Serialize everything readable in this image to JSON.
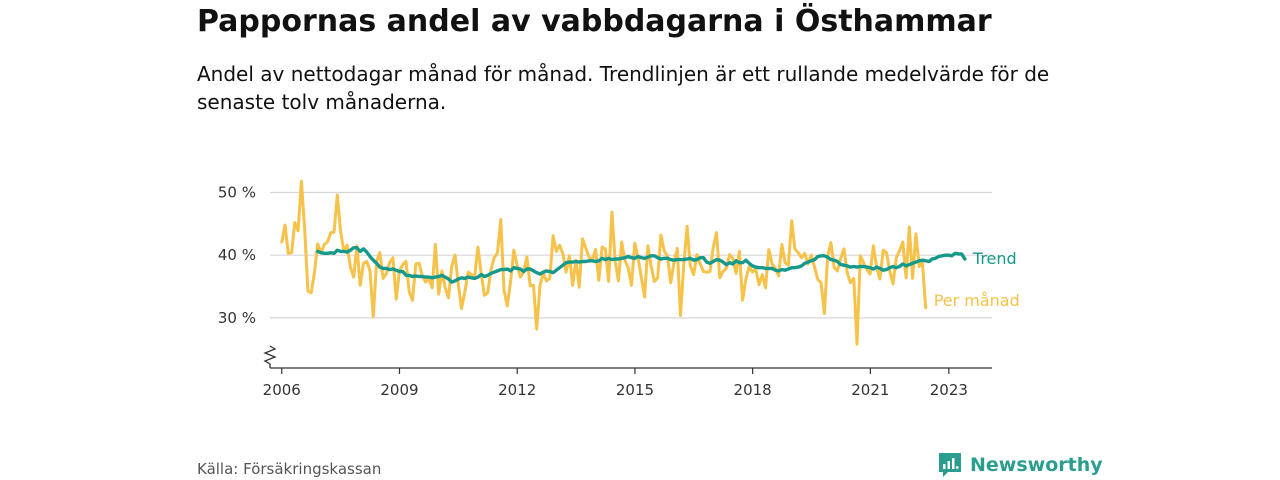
{
  "title": "Pappornas andel av vabbdagarna i Östhammar",
  "subtitle": "Andel av nettodagar månad för månad. Trendlinjen är ett rullande medelvärde för de senaste tolv månaderna.",
  "source": "Källa: Försäkringskassan",
  "brand": {
    "name": "Newsworthy",
    "icon": "newsworthy-logo-icon"
  },
  "colors": {
    "monthly": "#f6c24a",
    "trend": "#16998a",
    "grid": "#d6d6d6",
    "axis": "#333333",
    "brand": "#2a9d8f"
  },
  "chart_data": {
    "type": "line",
    "xlabel": "",
    "ylabel": "",
    "x_start": 2006.0,
    "x_step": 0.0833,
    "xlim": [
      2005.7,
      2024.1
    ],
    "ylim": [
      22,
      52
    ],
    "y_ticks": [
      30,
      40,
      50
    ],
    "y_tick_labels": [
      "30 %",
      "40 %",
      "50 %"
    ],
    "x_ticks": [
      2006,
      2009,
      2012,
      2015,
      2018,
      2021,
      2023
    ],
    "x_tick_labels": [
      "2006",
      "2009",
      "2012",
      "2015",
      "2018",
      "2021",
      "2023"
    ],
    "axis_break": true,
    "series": [
      {
        "name": "Per månad",
        "values": [
          42.1,
          44.8,
          40.3,
          40.4,
          45.2,
          43.9,
          51.8,
          44.1,
          34.3,
          34.0,
          37.3,
          41.8,
          40.4,
          41.7,
          42.1,
          43.6,
          43.7,
          49.6,
          43.8,
          40.6,
          41.6,
          38.1,
          36.5,
          41.5,
          35.2,
          38.7,
          39.0,
          37.5,
          30.2,
          39.0,
          40.4,
          36.3,
          37.1,
          38.8,
          39.6,
          33.0,
          37.5,
          38.5,
          39.0,
          34.2,
          32.8,
          38.6,
          38.7,
          36.7,
          35.7,
          36.3,
          34.8,
          41.7,
          33.8,
          37.5,
          34.8,
          33.2,
          38.2,
          40.0,
          35.4,
          31.5,
          34.1,
          37.3,
          36.9,
          36.5,
          41.3,
          37.1,
          33.6,
          34.0,
          37.7,
          39.6,
          40.4,
          45.7,
          34.4,
          31.9,
          35.8,
          40.8,
          38.4,
          36.5,
          37.3,
          39.7,
          35.1,
          35.2,
          28.2,
          35.2,
          37.1,
          35.9,
          36.3,
          43.1,
          40.6,
          41.6,
          40.2,
          37.3,
          39.9,
          35.2,
          39.2,
          34.9,
          42.6,
          41.1,
          39.7,
          39.3,
          40.9,
          36.0,
          41.3,
          41.0,
          35.8,
          46.9,
          39.0,
          35.9,
          42.1,
          39.1,
          38.0,
          35.2,
          41.9,
          39.5,
          36.5,
          33.3,
          41.5,
          38.3,
          35.8,
          36.4,
          43.2,
          40.7,
          39.8,
          35.6,
          38.9,
          41.1,
          30.4,
          38.5,
          44.6,
          38.3,
          36.9,
          40.1,
          38.6,
          37.4,
          37.3,
          37.4,
          41.2,
          43.6,
          36.4,
          37.4,
          37.9,
          40.1,
          39.5,
          37.1,
          40.6,
          32.8,
          36.2,
          38.2,
          37.3,
          37.8,
          35.3,
          36.9,
          34.8,
          40.9,
          38.6,
          37.9,
          36.7,
          41.7,
          38.8,
          38.4,
          45.5,
          41.0,
          40.4,
          39.6,
          40.3,
          38.6,
          40.0,
          38.1,
          36.1,
          35.6,
          30.7,
          39.8,
          42.0,
          38.0,
          37.5,
          39.5,
          41.0,
          37.2,
          35.6,
          36.3,
          25.8,
          39.9,
          38.8,
          37.7,
          37.0,
          41.5,
          38.0,
          36.2,
          40.8,
          40.4,
          37.5,
          35.4,
          39.6,
          40.7,
          42.1,
          36.4,
          44.5,
          36.3,
          43.4,
          38.2,
          38.8,
          31.6
        ]
      },
      {
        "name": "Trend",
        "values": [
          null,
          null,
          null,
          null,
          null,
          null,
          null,
          null,
          null,
          null,
          null,
          40.6,
          40.4,
          40.3,
          40.3,
          40.4,
          40.3,
          40.8,
          40.6,
          40.6,
          40.5,
          40.8,
          41.2,
          41.2,
          40.6,
          41.0,
          40.5,
          39.8,
          39.2,
          38.7,
          38.1,
          37.9,
          37.9,
          37.7,
          37.8,
          37.6,
          37.4,
          37.4,
          36.8,
          36.8,
          36.6,
          36.7,
          36.6,
          36.6,
          36.5,
          36.5,
          36.4,
          36.5,
          36.6,
          36.8,
          36.5,
          36.2,
          35.7,
          35.9,
          36.2,
          36.4,
          36.3,
          36.5,
          36.4,
          36.3,
          36.5,
          36.9,
          36.6,
          36.8,
          37.1,
          37.3,
          37.5,
          37.7,
          37.7,
          37.8,
          37.5,
          38.0,
          37.9,
          37.8,
          37.4,
          37.8,
          37.8,
          37.5,
          37.2,
          37.0,
          37.3,
          37.5,
          37.4,
          37.2,
          37.6,
          38.0,
          38.4,
          38.8,
          38.9,
          38.9,
          39.0,
          38.9,
          39.0,
          39.0,
          39.1,
          39.1,
          39.0,
          39.1,
          39.5,
          39.3,
          39.5,
          39.3,
          39.4,
          39.4,
          39.5,
          39.6,
          39.8,
          39.6,
          39.5,
          39.8,
          39.6,
          39.5,
          39.7,
          39.9,
          39.9,
          39.6,
          39.4,
          39.5,
          39.5,
          39.3,
          39.2,
          39.3,
          39.3,
          39.3,
          39.4,
          39.5,
          39.2,
          39.3,
          39.6,
          39.6,
          38.9,
          38.7,
          39.0,
          39.3,
          39.2,
          38.9,
          38.5,
          38.8,
          38.6,
          39.1,
          38.8,
          38.8,
          39.2,
          38.7,
          38.3,
          38.1,
          38.0,
          38.0,
          37.9,
          37.9,
          37.9,
          37.6,
          37.5,
          37.7,
          37.6,
          37.8,
          38.0,
          38.0,
          38.1,
          38.3,
          38.7,
          38.9,
          39.1,
          39.3,
          39.8,
          39.9,
          39.9,
          39.7,
          39.3,
          39.2,
          39.0,
          38.5,
          38.4,
          38.3,
          38.1,
          38.2,
          38.1,
          38.2,
          38.2,
          38.1,
          38.0,
          37.8,
          38.1,
          37.9,
          37.6,
          37.7,
          38.0,
          38.2,
          38.0,
          38.2,
          38.6,
          38.3,
          38.5,
          38.7,
          38.9,
          39.1,
          39.2,
          39.1,
          39.0,
          39.4,
          39.5,
          39.8,
          39.9,
          40.0,
          40.0,
          39.9,
          40.3,
          40.2,
          40.2,
          39.4
        ]
      }
    ]
  }
}
